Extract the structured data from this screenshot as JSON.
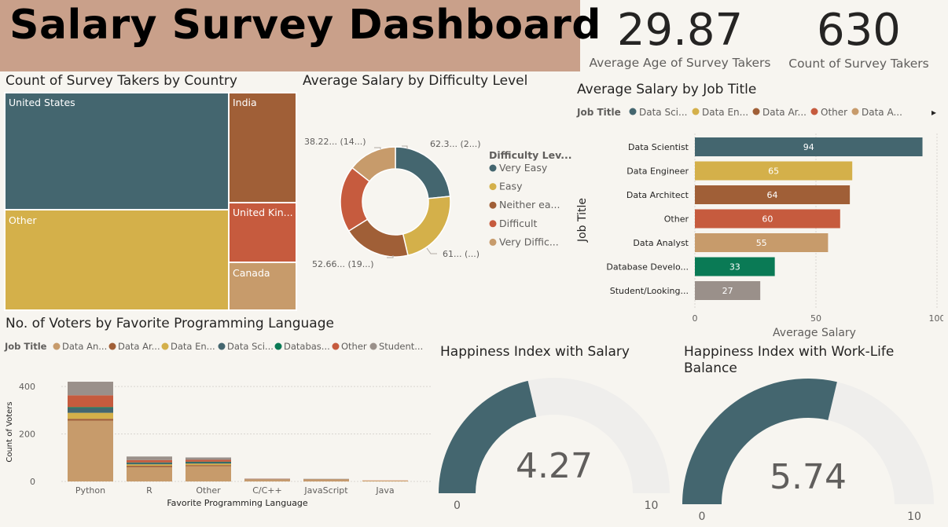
{
  "header": {
    "title": "Salary Survey Dashboard",
    "kpis": [
      {
        "value": "29.87",
        "label": "Average Age of Survey Takers"
      },
      {
        "value": "630",
        "label": "Count of Survey Takers"
      }
    ]
  },
  "visuals": {
    "treemap_title": "Count of Survey Takers by Country",
    "donut_title": "Average Salary by Difficulty Level",
    "job_title_bar_title": "Average Salary by Job Title",
    "language_title": "No. of Voters by Favorite Programming Language",
    "gauge1_title": "Happiness Index with Salary",
    "gauge2_title": "Happiness Index with Work-Life Balance"
  },
  "colors": {
    "teal": "#44666f",
    "gold": "#d4b04a",
    "brown": "#a05f37",
    "rust": "#c65b3e",
    "tan": "#c79b6b",
    "green": "#0a7a55",
    "gray": "#9a908a",
    "title_bg": "#c9a08a"
  },
  "chart_data": [
    {
      "id": "treemap",
      "type": "treemap",
      "title": "Count of Survey Takers by Country",
      "items": [
        {
          "label": "United States",
          "color": "#44666f"
        },
        {
          "label": "Other",
          "color": "#d4b04a"
        },
        {
          "label": "India",
          "color": "#a05f37"
        },
        {
          "label": "United Kin...",
          "color": "#c65b3e"
        },
        {
          "label": "Canada",
          "color": "#c79b6b"
        }
      ]
    },
    {
      "id": "donut",
      "type": "pie",
      "title": "Average Salary by Difficulty Level",
      "legend_title": "Difficulty Lev...",
      "legend": [
        "Very Easy",
        "Easy",
        "Neither ea...",
        "Difficult",
        "Very Diffic..."
      ],
      "values": [
        62.3,
        61,
        52.66,
        52,
        38.22
      ],
      "colors": [
        "#44666f",
        "#d4b04a",
        "#a05f37",
        "#c65b3e",
        "#c79b6b"
      ],
      "data_labels": [
        "62.3... (2...)",
        "61... (...)",
        "52.66... (19...)",
        "",
        "38.22... (14...)"
      ]
    },
    {
      "id": "job_bar",
      "type": "bar",
      "orientation": "horizontal",
      "title": "Average Salary by Job Title",
      "legend_title": "Job Title",
      "legend": [
        {
          "label": "Data Sci...",
          "color": "#44666f"
        },
        {
          "label": "Data En...",
          "color": "#d4b04a"
        },
        {
          "label": "Data Ar...",
          "color": "#a05f37"
        },
        {
          "label": "Other",
          "color": "#c65b3e"
        },
        {
          "label": "Data A...",
          "color": "#c79b6b"
        }
      ],
      "legend_arrow": "▸",
      "categories": [
        "Data Scientist",
        "Data Engineer",
        "Data Architect",
        "Other",
        "Data Analyst",
        "Database Develo...",
        "Student/Looking..."
      ],
      "values": [
        94,
        65,
        64,
        60,
        55,
        33,
        27
      ],
      "colors": [
        "#44666f",
        "#d4b04a",
        "#a05f37",
        "#c65b3e",
        "#c79b6b",
        "#0a7a55",
        "#9a908a"
      ],
      "xlabel": "Average Salary",
      "ylabel": "Job Title",
      "xlim": [
        0,
        100
      ],
      "xticks": [
        "0",
        "50",
        "100"
      ]
    },
    {
      "id": "lang_bar",
      "type": "bar",
      "orientation": "vertical-stacked",
      "title": "No. of Voters by Favorite Programming Language",
      "legend_title": "Job Title",
      "categories": [
        "Python",
        "R",
        "Other",
        "C/C++",
        "JavaScript",
        "Java"
      ],
      "series": [
        {
          "name": "Data An...",
          "color": "#c79b6b",
          "values": [
            256,
            60,
            64,
            6,
            6,
            2
          ]
        },
        {
          "name": "Data Ar...",
          "color": "#a05f37",
          "values": [
            8,
            6,
            5,
            1,
            1,
            0
          ]
        },
        {
          "name": "Data En...",
          "color": "#d4b04a",
          "values": [
            25,
            6,
            6,
            1,
            1,
            1
          ]
        },
        {
          "name": "Data Sci...",
          "color": "#44666f",
          "values": [
            20,
            6,
            6,
            1,
            1,
            0
          ]
        },
        {
          "name": "Databas...",
          "color": "#0a7a55",
          "values": [
            4,
            2,
            2,
            0,
            0,
            0
          ]
        },
        {
          "name": "Other",
          "color": "#c65b3e",
          "values": [
            50,
            10,
            8,
            2,
            1,
            1
          ]
        },
        {
          "name": "Student...",
          "color": "#9a908a",
          "values": [
            57,
            15,
            10,
            1,
            1,
            0
          ]
        }
      ],
      "xlabel": "Favorite Programming Language",
      "ylabel": "Count of Voters",
      "ylim": [
        0,
        420
      ],
      "yticks": [
        0,
        200,
        400
      ]
    },
    {
      "id": "gauge1",
      "type": "gauge",
      "title": "Happiness Index with Salary",
      "value": 4.27,
      "value_label": "4.27",
      "min": 0,
      "max": 10,
      "min_label": "0",
      "max_label": "10"
    },
    {
      "id": "gauge2",
      "type": "gauge",
      "title": "Happiness Index with Work-Life Balance",
      "value": 5.74,
      "value_label": "5.74",
      "min": 0,
      "max": 10,
      "min_label": "0",
      "max_label": "10"
    }
  ]
}
